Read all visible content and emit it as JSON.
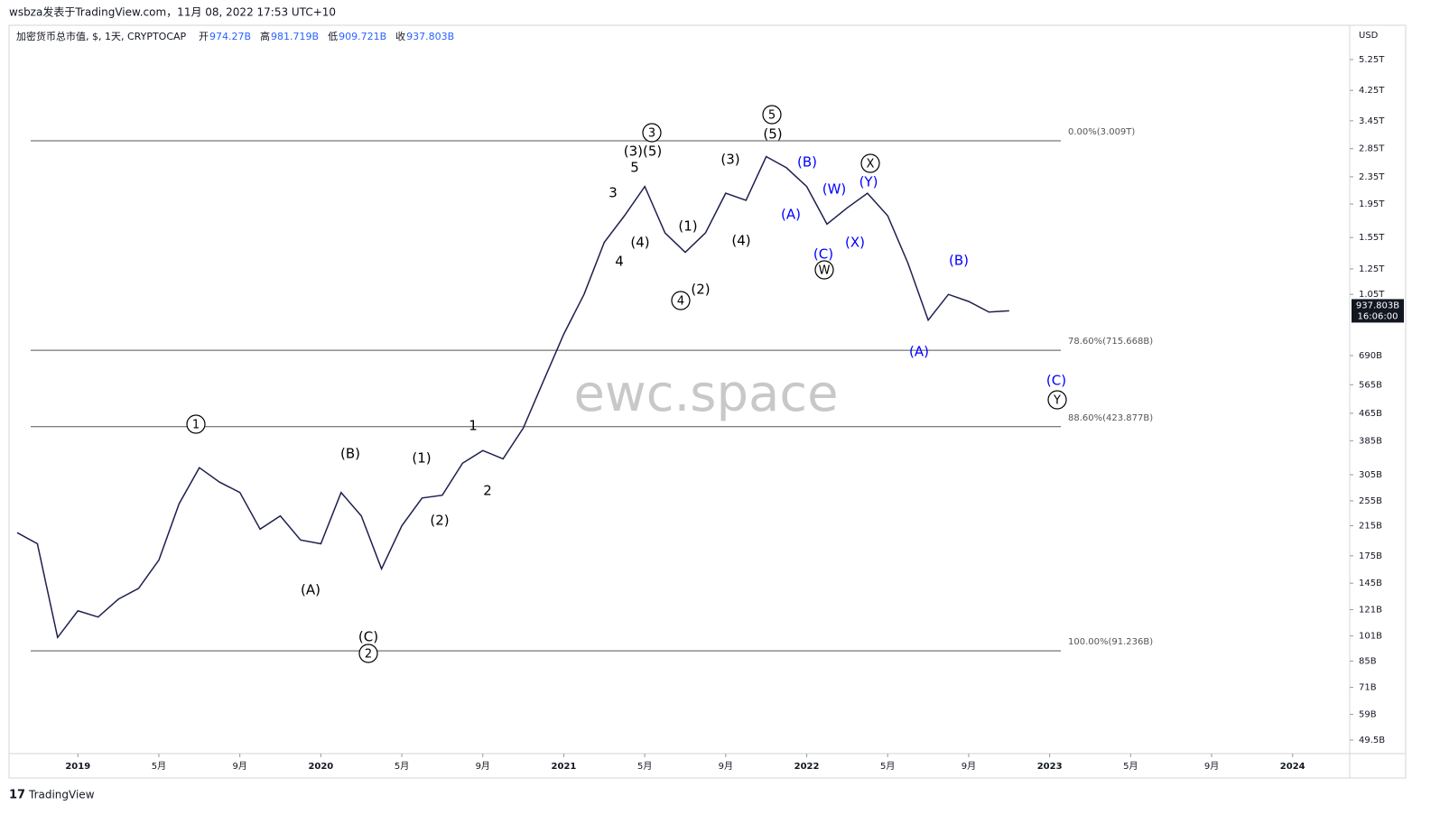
{
  "header": {
    "publisher": "wsbza发表于TradingView.com，11月 08, 2022 17:53 UTC+10",
    "footer": "TradingView"
  },
  "chart_data": {
    "type": "line",
    "symbol": "加密货币总市值, $, 1天, CRYPTOCAP",
    "ohlc": [
      {
        "label": "开",
        "value": "974.27B"
      },
      {
        "label": "高",
        "value": "981.719B"
      },
      {
        "label": "低",
        "value": "909.721B"
      },
      {
        "label": "收",
        "value": "937.803B"
      }
    ],
    "currency": "USD",
    "watermark": "ewc.space",
    "last_label": "937.803B",
    "countdown": "16:06:00",
    "log_scale": true,
    "x": [
      "2018-10",
      "2018-11",
      "2018-12",
      "2019-01",
      "2019-02",
      "2019-03",
      "2019-04",
      "2019-05",
      "2019-06",
      "2019-07",
      "2019-08",
      "2019-09",
      "2019-10",
      "2019-11",
      "2019-12",
      "2020-01",
      "2020-02",
      "2020-03",
      "2020-04",
      "2020-05",
      "2020-06",
      "2020-07",
      "2020-08",
      "2020-09",
      "2020-10",
      "2020-11",
      "2020-12",
      "2021-01",
      "2021-02",
      "2021-03",
      "2021-04",
      "2021-05",
      "2021-06",
      "2021-07",
      "2021-08",
      "2021-09",
      "2021-10",
      "2021-11",
      "2021-12",
      "2022-01",
      "2022-02",
      "2022-03",
      "2022-04",
      "2022-05",
      "2022-06",
      "2022-07",
      "2022-08",
      "2022-09",
      "2022-10",
      "2022-11"
    ],
    "series": [
      {
        "name": "CRYPTOCAP",
        "color": "#1e1f4f",
        "values": [
          205,
          190,
          100,
          120,
          115,
          130,
          140,
          170,
          250,
          320,
          290,
          270,
          210,
          230,
          195,
          190,
          270,
          230,
          160,
          215,
          260,
          265,
          330,
          360,
          340,
          420,
          580,
          800,
          1050,
          1500,
          1800,
          2200,
          1600,
          1400,
          1600,
          2100,
          2000,
          2700,
          2500,
          2200,
          1700,
          1900,
          2100,
          1800,
          1300,
          880,
          1050,
          1000,
          930,
          937.803
        ]
      }
    ],
    "xlim": [
      "2018-10",
      "2024-04"
    ],
    "xticks": [
      {
        "value": "2019-01",
        "label": "2019"
      },
      {
        "value": "2019-05",
        "label": "5月"
      },
      {
        "value": "2019-09",
        "label": "9月"
      },
      {
        "value": "2020-01",
        "label": "2020"
      },
      {
        "value": "2020-05",
        "label": "5月"
      },
      {
        "value": "2020-09",
        "label": "9月"
      },
      {
        "value": "2021-01",
        "label": "2021"
      },
      {
        "value": "2021-05",
        "label": "5月"
      },
      {
        "value": "2021-09",
        "label": "9月"
      },
      {
        "value": "2022-01",
        "label": "2022"
      },
      {
        "value": "2022-05",
        "label": "5月"
      },
      {
        "value": "2022-09",
        "label": "9月"
      },
      {
        "value": "2023-01",
        "label": "2023"
      },
      {
        "value": "2023-05",
        "label": "5月"
      },
      {
        "value": "2023-09",
        "label": "9月"
      },
      {
        "value": "2024-01",
        "label": "2024"
      }
    ],
    "ylim": [
      45.1,
      6640
    ],
    "yticks": [
      {
        "value": 5250,
        "label": "5.25T"
      },
      {
        "value": 4250,
        "label": "4.25T"
      },
      {
        "value": 3450,
        "label": "3.45T"
      },
      {
        "value": 2850,
        "label": "2.85T"
      },
      {
        "value": 2350,
        "label": "2.35T"
      },
      {
        "value": 1950,
        "label": "1.95T"
      },
      {
        "value": 1550,
        "label": "1.55T"
      },
      {
        "value": 1250,
        "label": "1.25T"
      },
      {
        "value": 1050,
        "label": "1.05T"
      },
      {
        "value": 690,
        "label": "690B"
      },
      {
        "value": 565,
        "label": "565B"
      },
      {
        "value": 465,
        "label": "465B"
      },
      {
        "value": 385,
        "label": "385B"
      },
      {
        "value": 305,
        "label": "305B"
      },
      {
        "value": 255,
        "label": "255B"
      },
      {
        "value": 215,
        "label": "215B"
      },
      {
        "value": 175,
        "label": "175B"
      },
      {
        "value": 145,
        "label": "145B"
      },
      {
        "value": 121,
        "label": "121B"
      },
      {
        "value": 101,
        "label": "101B"
      },
      {
        "value": 85,
        "label": "85B"
      },
      {
        "value": 71,
        "label": "71B"
      },
      {
        "value": 59,
        "label": "59B"
      },
      {
        "value": 49.5,
        "label": "49.5B"
      }
    ],
    "levels": [
      {
        "value": 3009,
        "label": "0.00%(3.009T)"
      },
      {
        "value": 715.668,
        "label": "78.60%(715.668B)"
      },
      {
        "value": 423.877,
        "label": "88.60%(423.877B)"
      },
      {
        "value": 91.236,
        "label": "100.00%(91.236B)"
      }
    ],
    "annotations": [
      {
        "text": "1",
        "color": "#000000",
        "circled": true
      },
      {
        "text": "(B)",
        "color": "#000000",
        "circled": false
      },
      {
        "text": "(1)",
        "color": "#000000",
        "circled": false
      },
      {
        "text": "1",
        "color": "#000000",
        "circled": false
      },
      {
        "text": "(A)",
        "color": "#000000",
        "circled": false
      },
      {
        "text": "(C)",
        "color": "#000000",
        "circled": false
      },
      {
        "text": "2",
        "color": "#000000",
        "circled": true
      },
      {
        "text": "(2)",
        "color": "#000000",
        "circled": false
      },
      {
        "text": "2",
        "color": "#000000",
        "circled": false
      },
      {
        "text": "3",
        "color": "#000000",
        "circled": false
      },
      {
        "text": "4",
        "color": "#000000",
        "circled": false
      },
      {
        "text": "5",
        "color": "#000000",
        "circled": false
      },
      {
        "text": "(3)(5)",
        "color": "#000000",
        "circled": false
      },
      {
        "text": "3",
        "color": "#000000",
        "circled": true
      },
      {
        "text": "(4)",
        "color": "#000000",
        "circled": false
      },
      {
        "text": "(1)",
        "color": "#000000",
        "circled": false
      },
      {
        "text": "4",
        "color": "#000000",
        "circled": true
      },
      {
        "text": "(2)",
        "color": "#000000",
        "circled": false
      },
      {
        "text": "(3)",
        "color": "#000000",
        "circled": false
      },
      {
        "text": "(4)",
        "color": "#000000",
        "circled": false
      },
      {
        "text": "5",
        "color": "#000000",
        "circled": true
      },
      {
        "text": "(5)",
        "color": "#000000",
        "circled": false
      },
      {
        "text": "(A)",
        "color": "#0000ff",
        "circled": false
      },
      {
        "text": "(B)",
        "color": "#0000ff",
        "circled": false
      },
      {
        "text": "(W)",
        "color": "#0000ff",
        "circled": false
      },
      {
        "text": "(C)",
        "color": "#0000ff",
        "circled": false
      },
      {
        "text": "W",
        "color": "#000000",
        "circled": true
      },
      {
        "text": "X",
        "color": "#000000",
        "circled": true
      },
      {
        "text": "(Y)",
        "color": "#0000ff",
        "circled": false
      },
      {
        "text": "(X)",
        "color": "#0000ff",
        "circled": false
      },
      {
        "text": "(B)",
        "color": "#0000ff",
        "circled": false
      },
      {
        "text": "(A)",
        "color": "#0000ff",
        "circled": false
      },
      {
        "text": "(C)",
        "color": "#0000ff",
        "circled": false
      },
      {
        "text": "Y",
        "color": "#000000",
        "circled": true
      }
    ]
  }
}
